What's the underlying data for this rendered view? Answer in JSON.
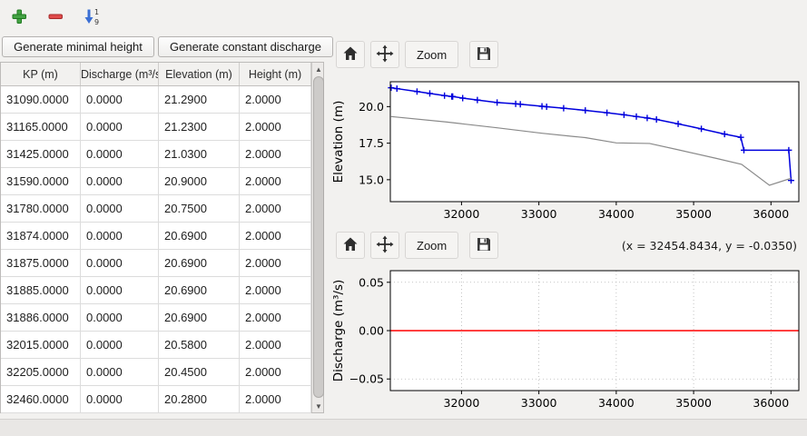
{
  "icons": {
    "add": "plus-icon",
    "remove": "minus-icon",
    "sort": "sort-numeric-down-icon",
    "home": "home-icon",
    "pan": "move-arrows-icon",
    "save": "floppy-disk-icon",
    "scroll_up_glyph": "▲",
    "scroll_down_glyph": "▼"
  },
  "buttons": {
    "generate_minimal_height": "Generate minimal height",
    "generate_constant_discharge": "Generate constant discharge"
  },
  "table": {
    "columns": [
      "KP (m)",
      "Discharge (m³/s)",
      "Elevation (m)",
      "Height (m)"
    ],
    "rows": [
      [
        "31090.0000",
        "0.0000",
        "21.2900",
        "2.0000"
      ],
      [
        "31165.0000",
        "0.0000",
        "21.2300",
        "2.0000"
      ],
      [
        "31425.0000",
        "0.0000",
        "21.0300",
        "2.0000"
      ],
      [
        "31590.0000",
        "0.0000",
        "20.9000",
        "2.0000"
      ],
      [
        "31780.0000",
        "0.0000",
        "20.7500",
        "2.0000"
      ],
      [
        "31874.0000",
        "0.0000",
        "20.6900",
        "2.0000"
      ],
      [
        "31875.0000",
        "0.0000",
        "20.6900",
        "2.0000"
      ],
      [
        "31885.0000",
        "0.0000",
        "20.6900",
        "2.0000"
      ],
      [
        "31886.0000",
        "0.0000",
        "20.6900",
        "2.0000"
      ],
      [
        "32015.0000",
        "0.0000",
        "20.5800",
        "2.0000"
      ],
      [
        "32205.0000",
        "0.0000",
        "20.4500",
        "2.0000"
      ],
      [
        "32460.0000",
        "0.0000",
        "20.2800",
        "2.0000"
      ]
    ]
  },
  "chart_toolbar": {
    "zoom_label": "Zoom",
    "coords": "(x = 32454.8434,  y = -0.0350)"
  },
  "chart_data": [
    {
      "id": "elevation",
      "type": "line",
      "title": "",
      "xlabel": "",
      "ylabel": "Elevation (m)",
      "xlim": [
        31080,
        36360
      ],
      "ylim": [
        13.5,
        21.7
      ],
      "xticks": [
        {
          "v": 32000,
          "label": "32000"
        },
        {
          "v": 33000,
          "label": "33000"
        },
        {
          "v": 34000,
          "label": "34000"
        },
        {
          "v": 35000,
          "label": "35000"
        },
        {
          "v": 36000,
          "label": "36000"
        }
      ],
      "yticks": [
        {
          "v": 15.0,
          "label": "15.0"
        },
        {
          "v": 17.5,
          "label": "17.5"
        },
        {
          "v": 20.0,
          "label": "20.0"
        }
      ],
      "grid": false,
      "series": [
        {
          "name": "water-elevation-profile",
          "color": "#0000dd",
          "marker": "+",
          "line_width": 1.5,
          "x": [
            31090,
            31165,
            31425,
            31590,
            31780,
            31874,
            31886,
            32015,
            32205,
            32460,
            32700,
            32760,
            33040,
            33100,
            33320,
            33600,
            33880,
            34100,
            34260,
            34400,
            34520,
            34800,
            35100,
            35400,
            35610,
            35650,
            36230,
            36260
          ],
          "y": [
            21.29,
            21.23,
            21.03,
            20.9,
            20.75,
            20.69,
            20.69,
            20.58,
            20.45,
            20.28,
            20.19,
            20.16,
            20.02,
            19.99,
            19.89,
            19.74,
            19.58,
            19.44,
            19.32,
            19.22,
            19.12,
            18.82,
            18.48,
            18.12,
            17.9,
            17.02,
            17.02,
            14.95
          ]
        },
        {
          "name": "bed-elevation-profile",
          "color": "#8a8a8a",
          "marker": "",
          "line_width": 1.2,
          "x": [
            31090,
            31800,
            32460,
            33040,
            33460,
            33600,
            34000,
            34430,
            34800,
            35300,
            35620,
            35980,
            36260
          ],
          "y": [
            19.32,
            18.95,
            18.55,
            18.18,
            17.95,
            17.88,
            17.52,
            17.48,
            17.05,
            16.45,
            16.05,
            14.62,
            15.1
          ]
        }
      ]
    },
    {
      "id": "discharge",
      "type": "line",
      "title": "",
      "xlabel": "",
      "ylabel": "Discharge (m³/s)",
      "xlim": [
        31080,
        36360
      ],
      "ylim": [
        -0.062,
        0.062
      ],
      "xticks": [
        {
          "v": 32000,
          "label": "32000"
        },
        {
          "v": 33000,
          "label": "33000"
        },
        {
          "v": 34000,
          "label": "34000"
        },
        {
          "v": 35000,
          "label": "35000"
        },
        {
          "v": 36000,
          "label": "36000"
        }
      ],
      "yticks": [
        {
          "v": -0.05,
          "label": "−0.05"
        },
        {
          "v": 0.0,
          "label": "0.00"
        },
        {
          "v": 0.05,
          "label": "0.05"
        }
      ],
      "grid": true,
      "series": [
        {
          "name": "discharge-line",
          "color": "#ff0000",
          "marker": "",
          "line_width": 1.4,
          "x": [
            31080,
            36360
          ],
          "y": [
            0,
            0
          ]
        }
      ]
    }
  ]
}
